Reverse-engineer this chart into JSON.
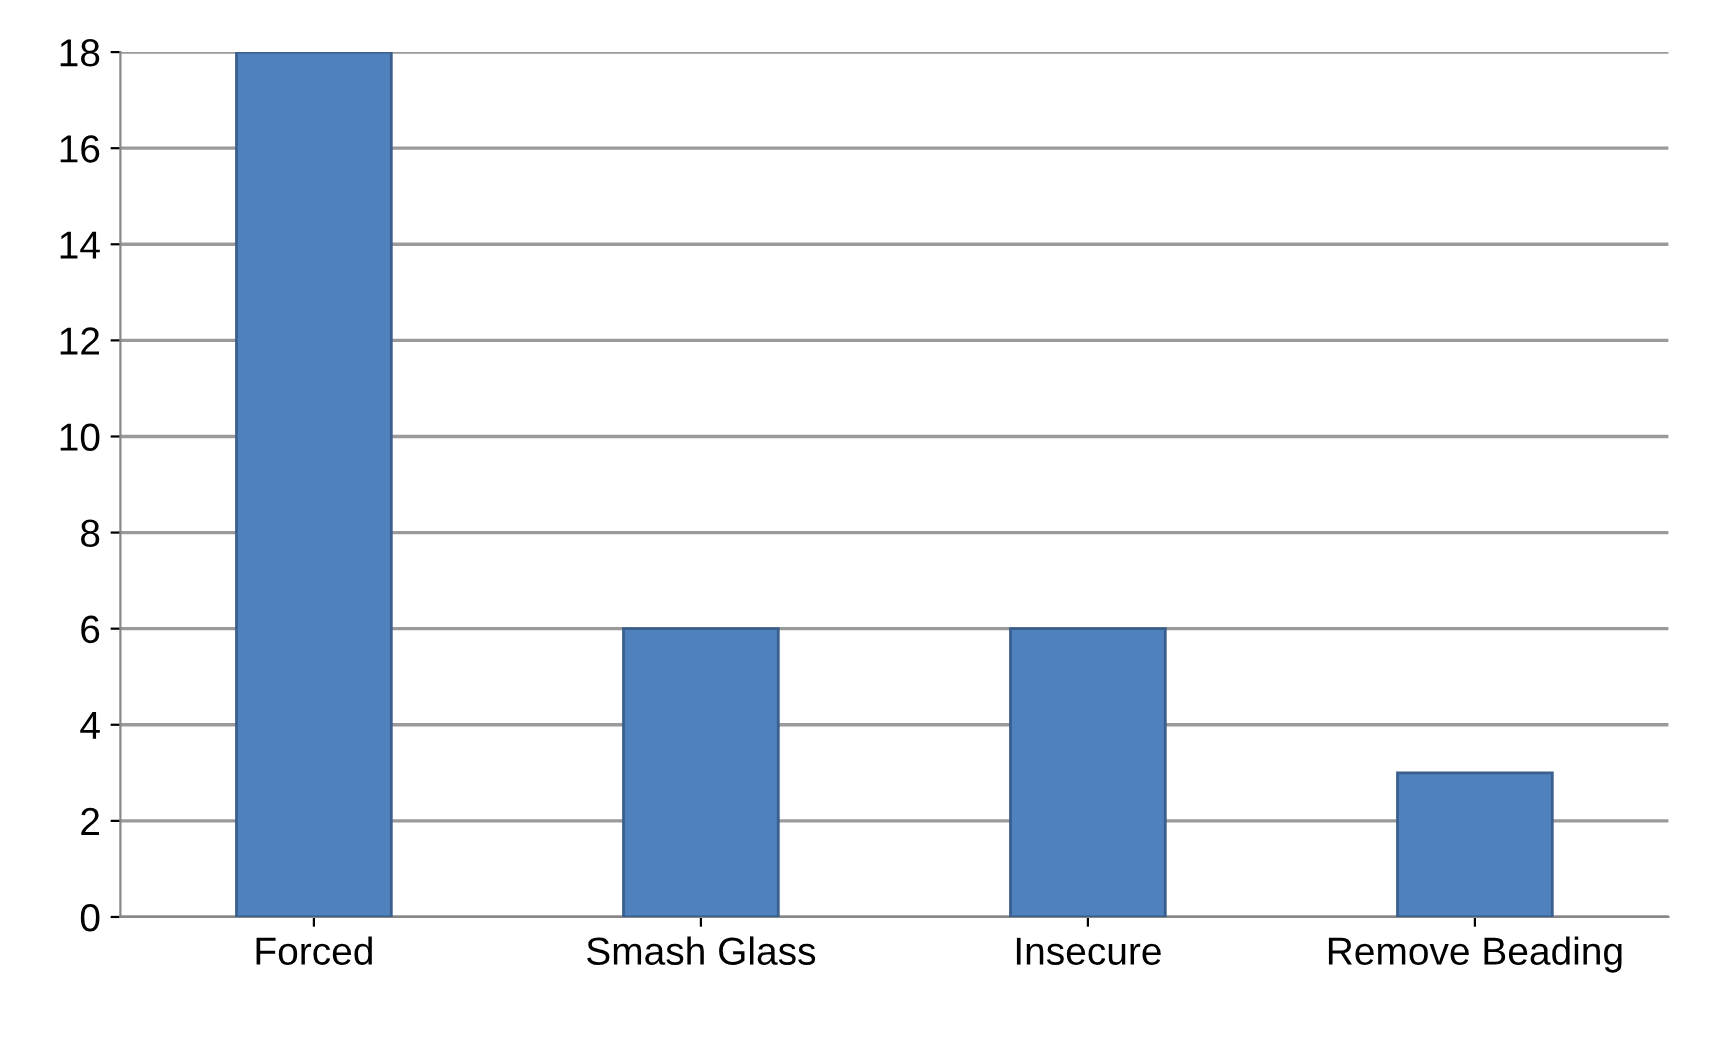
{
  "chart_data": {
    "type": "bar",
    "categories": [
      "Forced",
      "Smash Glass",
      "Insecure",
      "Remove Beading"
    ],
    "values": [
      18,
      6,
      6,
      3
    ],
    "color": "#4f81bd",
    "ylim": [
      0,
      18
    ],
    "yticks": [
      0,
      2,
      4,
      6,
      8,
      10,
      12,
      14,
      16,
      18
    ],
    "grid": "y",
    "legend": false
  }
}
